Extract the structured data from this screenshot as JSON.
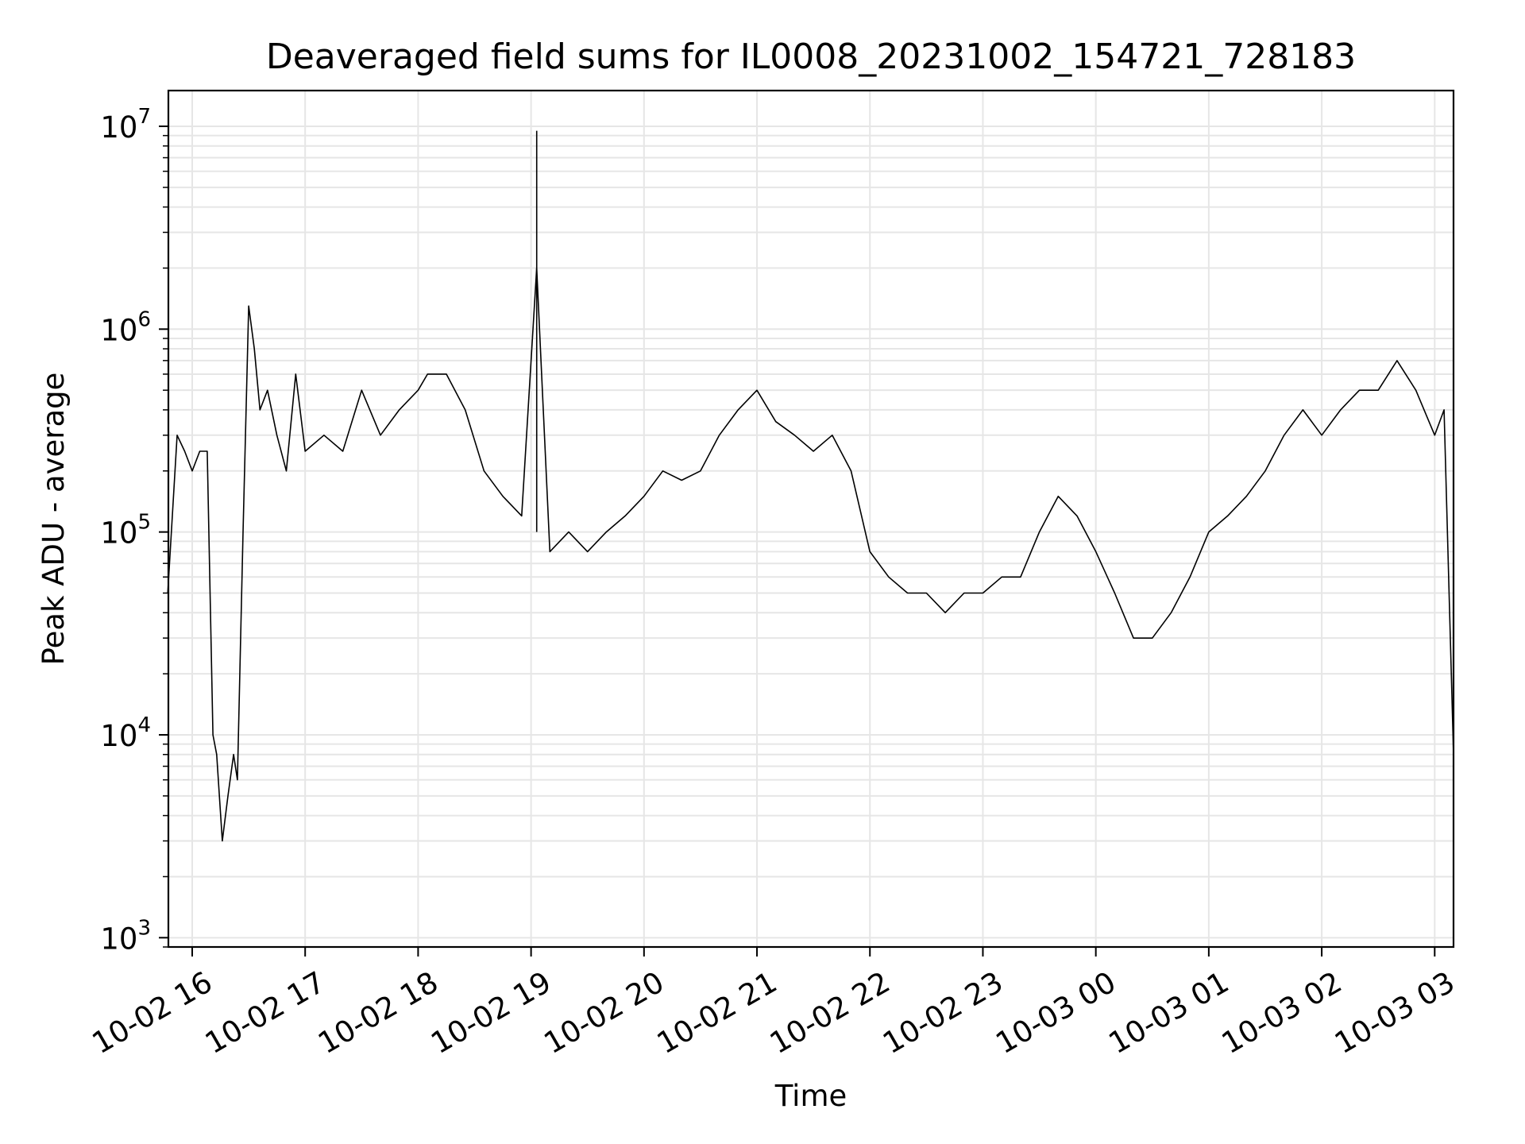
{
  "chart_data": {
    "type": "line",
    "title": "Deaveraged field sums for IL0008_20231002_154721_728183",
    "xlabel": "Time",
    "ylabel": "Peak ADU - average",
    "yscale": "log",
    "ylim": [
      900,
      15000000
    ],
    "xlim": [
      "2023-10-02 15:47:21",
      "2023-10-03 03:10:00"
    ],
    "xticks": [
      {
        "label": "10-02 16",
        "t": "2023-10-02 16:00"
      },
      {
        "label": "10-02 17",
        "t": "2023-10-02 17:00"
      },
      {
        "label": "10-02 18",
        "t": "2023-10-02 18:00"
      },
      {
        "label": "10-02 19",
        "t": "2023-10-02 19:00"
      },
      {
        "label": "10-02 20",
        "t": "2023-10-02 20:00"
      },
      {
        "label": "10-02 21",
        "t": "2023-10-02 21:00"
      },
      {
        "label": "10-02 22",
        "t": "2023-10-02 22:00"
      },
      {
        "label": "10-02 23",
        "t": "2023-10-02 23:00"
      },
      {
        "label": "10-03 00",
        "t": "2023-10-03 00:00"
      },
      {
        "label": "10-03 01",
        "t": "2023-10-03 01:00"
      },
      {
        "label": "10-03 02",
        "t": "2023-10-03 02:00"
      },
      {
        "label": "10-03 03",
        "t": "2023-10-03 03:00"
      }
    ],
    "yticks": [
      {
        "base": "10",
        "exp": "3",
        "value": 1000
      },
      {
        "base": "10",
        "exp": "4",
        "value": 10000
      },
      {
        "base": "10",
        "exp": "5",
        "value": 100000
      },
      {
        "base": "10",
        "exp": "6",
        "value": 1000000
      },
      {
        "base": "10",
        "exp": "7",
        "value": 10000000
      }
    ],
    "grid": true,
    "line_color": "#000000",
    "grid_color": "#e6e6e6",
    "series": [
      {
        "x": [
          "2023-10-02 15:47",
          "2023-10-02 15:52",
          "2023-10-02 15:56",
          "2023-10-02 16:00",
          "2023-10-02 16:04",
          "2023-10-02 16:08",
          "2023-10-02 16:11",
          "2023-10-02 16:13",
          "2023-10-02 16:16",
          "2023-10-02 16:19",
          "2023-10-02 16:22",
          "2023-10-02 16:24",
          "2023-10-02 16:27",
          "2023-10-02 16:30",
          "2023-10-02 16:33",
          "2023-10-02 16:36",
          "2023-10-02 16:40",
          "2023-10-02 16:45",
          "2023-10-02 16:50",
          "2023-10-02 16:55",
          "2023-10-02 17:00",
          "2023-10-02 17:10",
          "2023-10-02 17:20",
          "2023-10-02 17:30",
          "2023-10-02 17:40",
          "2023-10-02 17:50",
          "2023-10-02 18:00",
          "2023-10-02 18:05",
          "2023-10-02 18:15",
          "2023-10-02 18:25",
          "2023-10-02 18:35",
          "2023-10-02 18:45",
          "2023-10-02 18:55",
          "2023-10-02 19:03",
          "2023-10-02 19:10",
          "2023-10-02 19:20",
          "2023-10-02 19:30",
          "2023-10-02 19:40",
          "2023-10-02 19:50",
          "2023-10-02 20:00",
          "2023-10-02 20:10",
          "2023-10-02 20:20",
          "2023-10-02 20:30",
          "2023-10-02 20:40",
          "2023-10-02 20:50",
          "2023-10-02 21:00",
          "2023-10-02 21:10",
          "2023-10-02 21:20",
          "2023-10-02 21:30",
          "2023-10-02 21:40",
          "2023-10-02 21:50",
          "2023-10-02 22:00",
          "2023-10-02 22:10",
          "2023-10-02 22:20",
          "2023-10-02 22:30",
          "2023-10-02 22:40",
          "2023-10-02 22:50",
          "2023-10-02 23:00",
          "2023-10-02 23:10",
          "2023-10-02 23:20",
          "2023-10-02 23:30",
          "2023-10-02 23:40",
          "2023-10-02 23:50",
          "2023-10-03 00:00",
          "2023-10-03 00:10",
          "2023-10-03 00:20",
          "2023-10-03 00:30",
          "2023-10-03 00:40",
          "2023-10-03 00:50",
          "2023-10-03 01:00",
          "2023-10-03 01:10",
          "2023-10-03 01:20",
          "2023-10-03 01:30",
          "2023-10-03 01:40",
          "2023-10-03 01:50",
          "2023-10-03 02:00",
          "2023-10-03 02:10",
          "2023-10-03 02:20",
          "2023-10-03 02:30",
          "2023-10-03 02:40",
          "2023-10-03 02:50",
          "2023-10-03 03:00",
          "2023-10-03 03:05",
          "2023-10-03 03:10"
        ],
        "y": [
          50000,
          300000,
          250000,
          200000,
          250000,
          250000,
          10000,
          8000,
          3000,
          5000,
          8000,
          6000,
          100000,
          1300000,
          800000,
          400000,
          500000,
          300000,
          200000,
          600000,
          250000,
          300000,
          250000,
          500000,
          300000,
          400000,
          500000,
          600000,
          600000,
          400000,
          200000,
          150000,
          120000,
          2000000,
          80000,
          100000,
          80000,
          100000,
          120000,
          150000,
          200000,
          180000,
          200000,
          300000,
          400000,
          500000,
          350000,
          300000,
          250000,
          300000,
          200000,
          80000,
          60000,
          50000,
          50000,
          40000,
          50000,
          50000,
          60000,
          60000,
          100000,
          150000,
          120000,
          80000,
          50000,
          30000,
          30000,
          40000,
          60000,
          100000,
          120000,
          150000,
          200000,
          300000,
          400000,
          300000,
          400000,
          500000,
          500000,
          700000,
          500000,
          300000,
          400000,
          8000
        ]
      }
    ],
    "annotations": [
      {
        "t": "2023-10-02 19:03",
        "y": 9500000
      }
    ]
  }
}
